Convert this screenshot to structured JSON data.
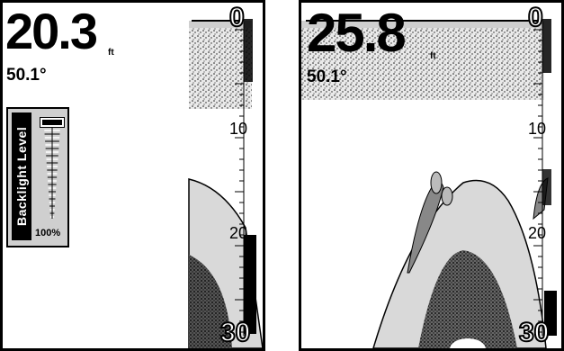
{
  "left_screen": {
    "depth": "20.3",
    "depth_unit": "ft",
    "temperature": "50.1°",
    "scale": {
      "top": "0",
      "mid1": "10",
      "mid2": "20",
      "bottom": "30"
    },
    "backlight": {
      "label": "Backlight Level",
      "level_text": "100%",
      "level": 1.0
    }
  },
  "right_screen": {
    "depth": "25.8",
    "depth_unit": "ft",
    "temperature": "50.1°",
    "scale": {
      "top": "0",
      "mid1": "10",
      "mid2": "20",
      "bottom": "30"
    }
  },
  "colors": {
    "background": "#ffffff",
    "ink": "#000000",
    "bottom_fill": "#d9d9d9"
  }
}
